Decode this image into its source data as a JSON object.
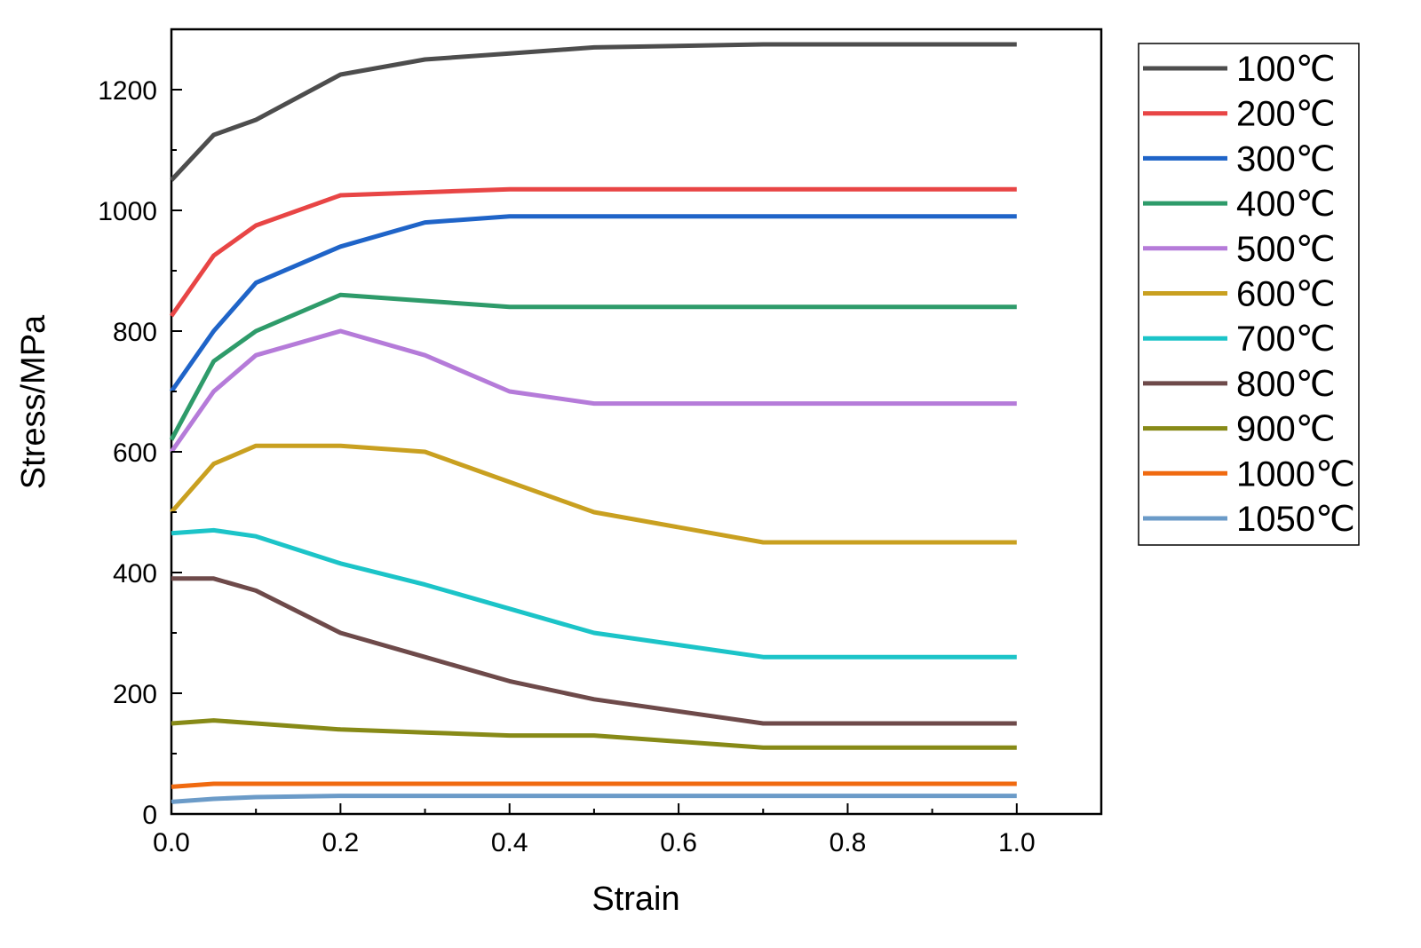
{
  "chart_data": {
    "type": "line",
    "title": "",
    "xlabel": "Strain",
    "ylabel": "Stress/MPa",
    "xlim": [
      0,
      1.1
    ],
    "ylim": [
      0,
      1300
    ],
    "xticks": [
      0.0,
      0.2,
      0.4,
      0.6,
      0.8,
      1.0
    ],
    "xtick_labels": [
      "0.0",
      "0.2",
      "0.4",
      "0.6",
      "0.8",
      "1.0"
    ],
    "yticks": [
      0,
      200,
      400,
      600,
      800,
      1000,
      1200
    ],
    "ytick_labels": [
      "0",
      "200",
      "400",
      "600",
      "800",
      "1000",
      "1200"
    ],
    "grid": false,
    "legend_position": "outside-right-top",
    "x": [
      0,
      0.05,
      0.1,
      0.2,
      0.3,
      0.4,
      0.5,
      0.7,
      1.0
    ],
    "series": [
      {
        "name": "100℃",
        "color": "#4d4d4d",
        "values": [
          1050,
          1125,
          1150,
          1225,
          1250,
          1260,
          1270,
          1275,
          1275
        ]
      },
      {
        "name": "200℃",
        "color": "#e84545",
        "values": [
          825,
          925,
          975,
          1025,
          1030,
          1035,
          1035,
          1035,
          1035
        ]
      },
      {
        "name": "300℃",
        "color": "#1f64c8",
        "values": [
          700,
          800,
          880,
          940,
          980,
          990,
          990,
          990,
          990
        ]
      },
      {
        "name": "400℃",
        "color": "#2e9b6a",
        "values": [
          620,
          750,
          800,
          860,
          850,
          840,
          840,
          840,
          840
        ]
      },
      {
        "name": "500℃",
        "color": "#b57bd9",
        "values": [
          600,
          700,
          760,
          800,
          760,
          700,
          680,
          680,
          680
        ]
      },
      {
        "name": "600℃",
        "color": "#c9a020",
        "values": [
          500,
          580,
          610,
          610,
          600,
          550,
          500,
          450,
          450
        ]
      },
      {
        "name": "700℃",
        "color": "#1cc4c8",
        "values": [
          465,
          470,
          460,
          415,
          380,
          340,
          300,
          260,
          260
        ]
      },
      {
        "name": "800℃",
        "color": "#6e4a4a",
        "values": [
          390,
          390,
          370,
          300,
          260,
          220,
          190,
          150,
          150
        ]
      },
      {
        "name": "900℃",
        "color": "#878a17",
        "values": [
          150,
          155,
          150,
          140,
          135,
          130,
          130,
          110,
          110
        ]
      },
      {
        "name": "1000℃",
        "color": "#f06a10",
        "values": [
          45,
          50,
          50,
          50,
          50,
          50,
          50,
          50,
          50
        ]
      },
      {
        "name": "1050℃",
        "color": "#6b9bc8",
        "values": [
          20,
          25,
          28,
          30,
          30,
          30,
          30,
          30,
          30
        ]
      }
    ]
  }
}
